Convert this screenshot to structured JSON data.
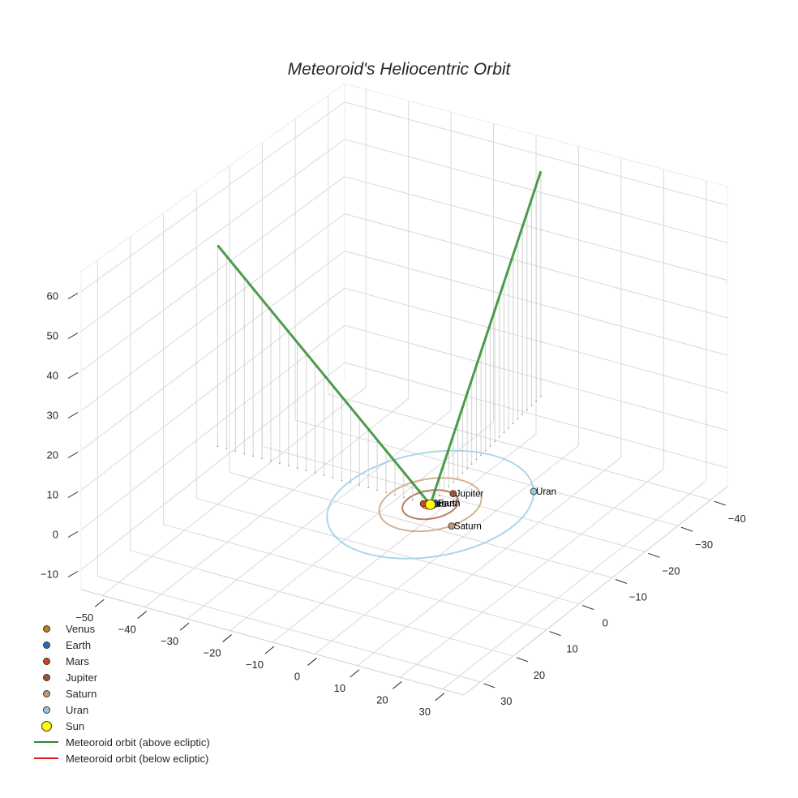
{
  "title": "Meteoroid's Heliocentric Orbit",
  "chart_data": {
    "type": "scatter3d",
    "title": "Meteoroid's Heliocentric Orbit",
    "xlabel": "",
    "ylabel": "",
    "zlabel": "",
    "xlim": [
      -55,
      35
    ],
    "ylim": [
      -45,
      35
    ],
    "zlim": [
      -15,
      65
    ],
    "x_ticks": [
      -50,
      -40,
      -30,
      -20,
      -10,
      0,
      10,
      20,
      30
    ],
    "y_ticks": [
      -40,
      -30,
      -20,
      -10,
      0,
      10,
      20,
      30
    ],
    "z_ticks": [
      -10,
      0,
      10,
      20,
      30,
      40,
      50,
      60
    ],
    "grid": true,
    "legend_position": "lower left",
    "planets": [
      {
        "name": "Venus",
        "color": "#c07b1a",
        "x": -0.7,
        "y": -0.2,
        "z": 0,
        "orbit_r": 0.72
      },
      {
        "name": "Earth",
        "color": "#1f6fb4",
        "x": 0.6,
        "y": -0.8,
        "z": 0,
        "orbit_r": 1.0
      },
      {
        "name": "Mars",
        "color": "#d2431a",
        "x": -1.4,
        "y": 0.3,
        "z": 0,
        "orbit_r": 1.52
      },
      {
        "name": "Jupiter",
        "color": "#a0522d",
        "x": 1.5,
        "y": -5.0,
        "z": 0,
        "orbit_r": 5.2
      },
      {
        "name": "Saturn",
        "color": "#c49a6c",
        "x": 8.5,
        "y": 4.5,
        "z": 0,
        "orbit_r": 9.5
      },
      {
        "name": "Uran",
        "color": "#8ccbe0",
        "x": 15.0,
        "y": -12.0,
        "z": 0,
        "orbit_r": 19.2
      },
      {
        "name": "Sun",
        "color": "#ffff00",
        "x": 0,
        "y": 0,
        "z": 0
      }
    ],
    "series": [
      {
        "name": "Meteoroid orbit (above ecliptic)",
        "color": "#2e8b2e",
        "points": [
          [
            -50,
            0,
            52
          ],
          [
            0,
            0,
            0
          ],
          [
            -5,
            -40,
            60
          ]
        ]
      },
      {
        "name": "Meteoroid orbit (below ecliptic)",
        "color": "#e41a1c",
        "points": []
      }
    ]
  },
  "legend": [
    {
      "label": "Venus",
      "type": "dot",
      "color": "#c07b1a",
      "size": 9
    },
    {
      "label": "Earth",
      "type": "dot",
      "color": "#1f6fb4",
      "size": 9
    },
    {
      "label": "Mars",
      "type": "dot",
      "color": "#d2431a",
      "size": 9
    },
    {
      "label": "Jupiter",
      "type": "dot",
      "color": "#a0522d",
      "size": 9
    },
    {
      "label": "Saturn",
      "type": "dot",
      "color": "#c49a6c",
      "size": 9
    },
    {
      "label": "Uran",
      "type": "dot",
      "color": "#8ccbe0",
      "size": 9
    },
    {
      "label": "Sun",
      "type": "dot",
      "color": "#ffff00",
      "size": 13
    },
    {
      "label": "Meteoroid orbit (above ecliptic)",
      "type": "line",
      "color": "#2e8b2e"
    },
    {
      "label": "Meteoroid orbit (below ecliptic)",
      "type": "line",
      "color": "#e41a1c"
    }
  ]
}
